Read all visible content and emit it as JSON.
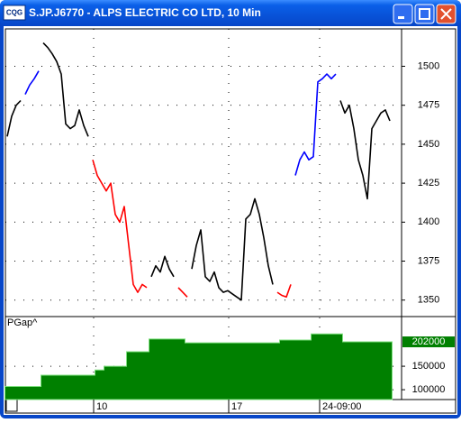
{
  "window": {
    "icon": "CQG",
    "title": "S.JP.J6770 - ALPS ELECTRIC CO LTD, 10 Min"
  },
  "chart_data": [
    {
      "type": "line",
      "x": [
        0,
        1,
        2,
        3,
        4,
        5,
        6,
        7,
        8,
        9,
        10,
        11,
        12,
        13,
        14,
        15,
        16,
        17,
        18,
        19,
        20,
        21,
        22,
        23,
        24,
        25,
        26,
        27,
        28,
        29,
        30,
        31,
        32,
        33,
        34,
        35,
        36,
        37,
        38,
        39,
        40,
        41,
        42,
        43,
        44,
        45,
        46,
        47,
        48,
        49,
        50,
        51,
        52,
        53,
        54,
        55,
        56,
        57,
        58,
        59,
        60,
        61,
        62,
        63,
        64,
        65,
        66,
        67,
        68,
        69,
        70,
        71,
        72,
        73,
        74,
        75,
        76,
        77,
        78,
        79,
        80,
        81,
        82,
        83,
        84,
        85
      ],
      "series": [
        {
          "color": "#000000",
          "values": [
            1455,
            1468,
            1475,
            1478,
            null,
            null,
            null,
            null,
            1515,
            1512,
            1508,
            1503,
            1495,
            1463,
            1460,
            1462,
            1472,
            1462,
            1455,
            null,
            null,
            null,
            null,
            null,
            null,
            null,
            null,
            null,
            null,
            null,
            null,
            null,
            1365,
            1372,
            1368,
            1378,
            1370,
            1365,
            null,
            null,
            null,
            1370,
            1385,
            1395,
            1365,
            1362,
            1368,
            1358,
            1355,
            1356,
            1354,
            1352,
            1350,
            1402,
            1405,
            1415,
            1405,
            1390,
            1372,
            1360,
            null,
            null,
            null,
            null,
            null,
            null,
            null,
            null,
            null,
            null,
            null,
            null,
            null,
            null,
            1478,
            1470,
            1475,
            1460,
            1440,
            1430,
            1415,
            1460,
            1465,
            1470,
            1472,
            1465
          ]
        },
        {
          "color": "#0000ff",
          "values": [
            null,
            null,
            null,
            null,
            1482,
            1488,
            1492,
            1497,
            null,
            null,
            null,
            null,
            null,
            null,
            null,
            null,
            null,
            null,
            null,
            null,
            null,
            null,
            null,
            null,
            null,
            null,
            null,
            null,
            null,
            null,
            null,
            null,
            null,
            null,
            null,
            null,
            null,
            null,
            null,
            null,
            null,
            null,
            null,
            null,
            null,
            null,
            null,
            null,
            null,
            null,
            null,
            null,
            null,
            null,
            null,
            null,
            null,
            null,
            null,
            null,
            null,
            null,
            null,
            null,
            1430,
            1440,
            1445,
            1440,
            1442,
            1490,
            1492,
            1495,
            1492,
            1495,
            null,
            null,
            null,
            null,
            null,
            null,
            null,
            null,
            null,
            null,
            null,
            null
          ]
        },
        {
          "color": "#ff0000",
          "values": [
            null,
            null,
            null,
            null,
            null,
            null,
            null,
            null,
            null,
            null,
            null,
            null,
            null,
            null,
            null,
            null,
            null,
            null,
            null,
            1440,
            1430,
            1425,
            1420,
            1425,
            1405,
            1400,
            1410,
            1385,
            1360,
            1355,
            1360,
            1358,
            null,
            null,
            null,
            null,
            null,
            null,
            1358,
            1355,
            1352,
            null,
            null,
            null,
            null,
            null,
            null,
            null,
            null,
            null,
            null,
            null,
            null,
            null,
            null,
            null,
            null,
            null,
            null,
            null,
            1355,
            1353,
            1352,
            1360,
            null,
            null,
            null,
            null,
            null,
            null,
            null,
            null,
            null,
            null,
            null,
            null,
            null,
            null,
            null,
            null,
            null,
            null,
            null,
            null,
            null,
            null
          ]
        }
      ],
      "xlim": [
        -0.4,
        87.6
      ],
      "xticks": [
        {
          "value": 19.2,
          "label": "10"
        },
        {
          "value": 49.2,
          "label": "17"
        },
        {
          "value": 69.4,
          "label": "24-09:00"
        }
      ],
      "ylim": [
        1340,
        1524
      ],
      "yticks": [
        1350,
        1375,
        1400,
        1425,
        1450,
        1475,
        1500
      ],
      "grid": true
    },
    {
      "type": "area",
      "title": "PGap^",
      "color": "#008000",
      "values": [
        107000,
        107000,
        107000,
        107000,
        107000,
        107000,
        107000,
        107000,
        131000,
        131000,
        131000,
        131000,
        131000,
        131000,
        131000,
        131000,
        131000,
        131000,
        131000,
        131000,
        142000,
        142000,
        150000,
        150000,
        150000,
        150000,
        150000,
        181000,
        181000,
        181000,
        181000,
        181000,
        208000,
        208000,
        208000,
        208000,
        208000,
        208000,
        208000,
        208000,
        200000,
        200000,
        200000,
        200000,
        200000,
        200000,
        200000,
        200000,
        200000,
        200000,
        200000,
        200000,
        200000,
        200000,
        200000,
        200000,
        200000,
        200000,
        200000,
        200000,
        200000,
        206000,
        206000,
        206000,
        206000,
        206000,
        206000,
        206000,
        219000,
        219000,
        219000,
        219000,
        219000,
        219000,
        219000,
        202000,
        202000,
        202000,
        202000,
        202000,
        202000,
        202000,
        202000,
        202000,
        202000,
        202000
      ],
      "ylim": [
        79000,
        254000
      ],
      "yticks": [
        100000,
        150000
      ],
      "grid": true
    }
  ]
}
